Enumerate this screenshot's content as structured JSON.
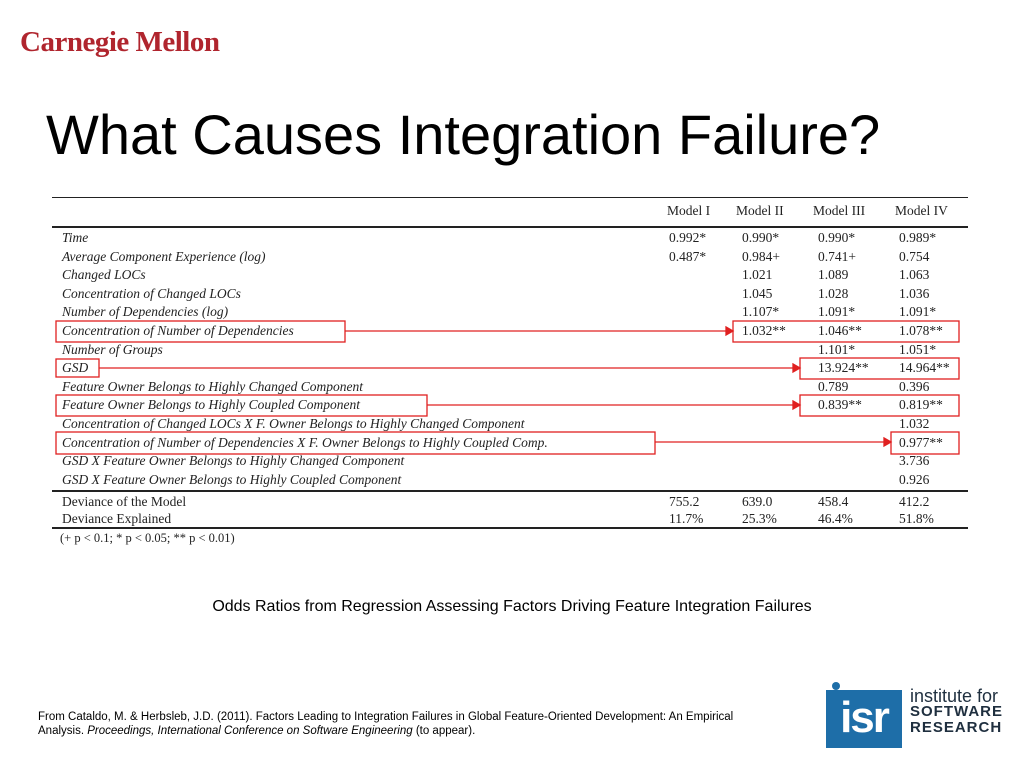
{
  "header": {
    "logo_text": "Carnegie Mellon",
    "title": "What Causes Integration Failure?"
  },
  "table": {
    "columns": [
      "Model I",
      "Model II",
      "Model III",
      "Model IV"
    ],
    "rows": [
      {
        "label": "Time",
        "italic": true,
        "values": [
          "0.992*",
          "0.990*",
          "0.990*",
          "0.989*"
        ]
      },
      {
        "label": "Average Component Experience (log)",
        "italic": true,
        "values": [
          "0.487*",
          "0.984+",
          "0.741+",
          "0.754"
        ]
      },
      {
        "label": "Changed LOCs",
        "italic": true,
        "values": [
          "",
          "1.021",
          "1.089",
          "1.063"
        ]
      },
      {
        "label": "Concentration of Changed LOCs",
        "italic": true,
        "values": [
          "",
          "1.045",
          "1.028",
          "1.036"
        ]
      },
      {
        "label": "Number of Dependencies (log)",
        "italic": true,
        "values": [
          "",
          "1.107*",
          "1.091*",
          "1.091*"
        ]
      },
      {
        "label": "Concentration of Number of Dependencies",
        "italic": true,
        "values": [
          "",
          "1.032**",
          "1.046**",
          "1.078**"
        ]
      },
      {
        "label": "Number of Groups",
        "italic": true,
        "values": [
          "",
          "",
          "1.101*",
          "1.051*"
        ]
      },
      {
        "label": "GSD",
        "italic": true,
        "values": [
          "",
          "",
          "13.924**",
          "14.964**"
        ]
      },
      {
        "label": "Feature Owner Belongs to Highly Changed Component",
        "italic": true,
        "values": [
          "",
          "",
          "0.789",
          "0.396"
        ]
      },
      {
        "label": "Feature Owner Belongs to Highly Coupled Component",
        "italic": true,
        "values": [
          "",
          "",
          "0.839**",
          "0.819**"
        ]
      },
      {
        "label": "Concentration of Changed LOCs X F. Owner Belongs to Highly Changed Component",
        "italic": true,
        "values": [
          "",
          "",
          "",
          "1.032"
        ]
      },
      {
        "label": "Concentration of Number of Dependencies X F. Owner Belongs to Highly Coupled Comp.",
        "italic": true,
        "values": [
          "",
          "",
          "",
          "0.977**"
        ]
      },
      {
        "label": "GSD X Feature Owner Belongs to Highly Changed Component",
        "italic": true,
        "values": [
          "",
          "",
          "",
          "3.736"
        ]
      },
      {
        "label": "GSD X Feature Owner Belongs to Highly Coupled Component",
        "italic": true,
        "values": [
          "",
          "",
          "",
          "0.926"
        ]
      }
    ],
    "summary_rows": [
      {
        "label": "Deviance of the Model",
        "values": [
          "755.2",
          "639.0",
          "458.4",
          "412.2"
        ]
      },
      {
        "label": "Deviance Explained",
        "values": [
          "11.7%",
          "25.3%",
          "46.4%",
          "51.8%"
        ]
      }
    ],
    "significance_note": "(+ p < 0.1; * p < 0.05; ** p < 0.01)"
  },
  "annotation_color": "#e02020",
  "caption": "Odds Ratios from Regression Assessing Factors Driving Feature Integration Failures",
  "citation": {
    "prefix": "From Cataldo, M. & Herbsleb, J.D. (2011).  Factors Leading to Integration Failures in Global Feature-Oriented Development: An Empirical Analysis.  ",
    "venue": "Proceedings, International Conference on Software Engineering",
    "suffix": " (to appear)."
  },
  "isr_logo": {
    "mark": "isr",
    "line1": "institute for",
    "line2": "SOFTWARE",
    "line3": "RESEARCH"
  }
}
